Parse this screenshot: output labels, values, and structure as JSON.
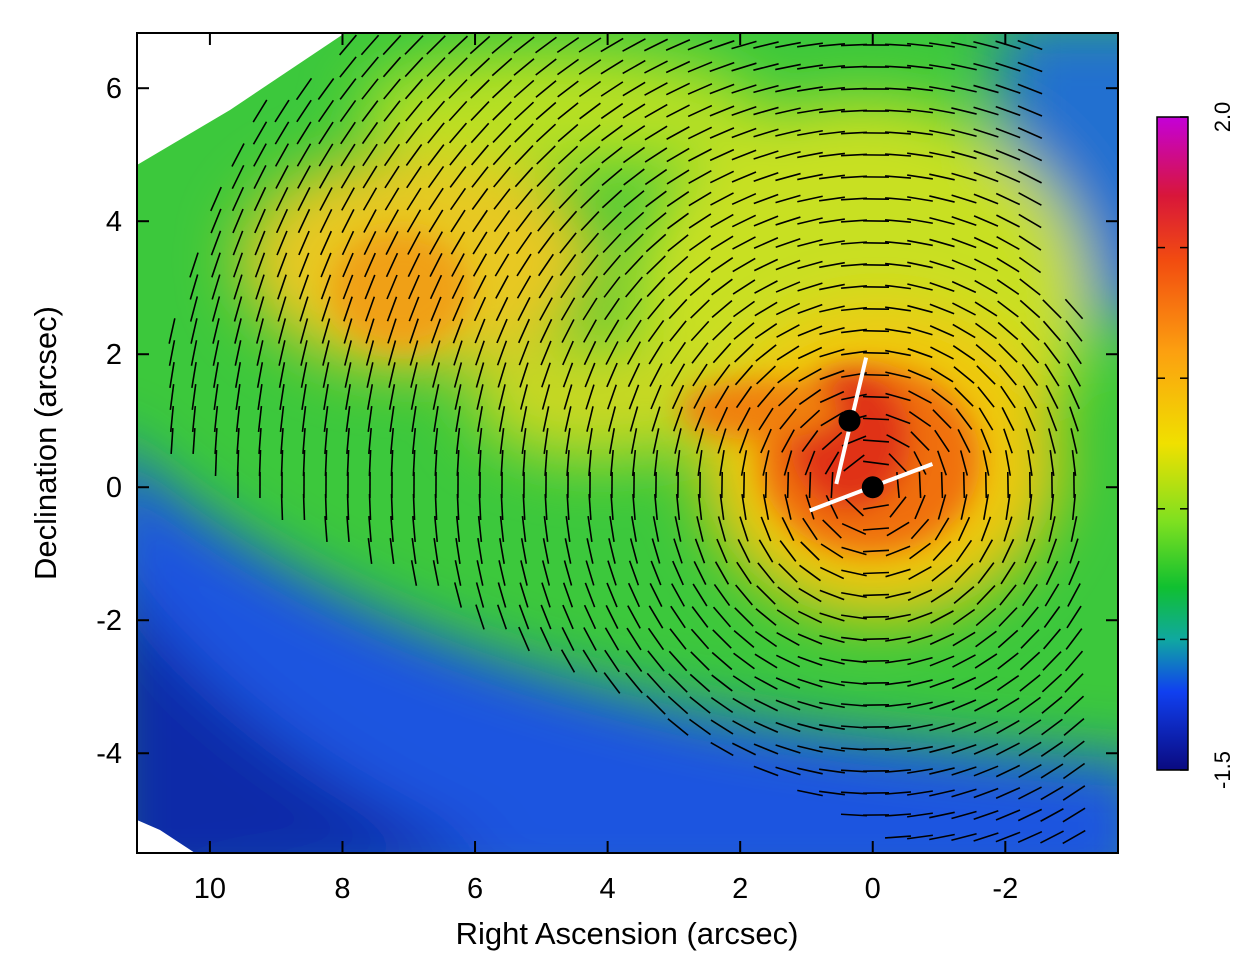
{
  "chart_data": {
    "type": "heatmap",
    "xlabel": "Right Ascension (arcsec)",
    "ylabel": "Declination (arcsec)",
    "xlim": [
      11.1,
      -3.7
    ],
    "ylim": [
      -5.5,
      6.83
    ],
    "xticks": [
      10,
      8,
      6,
      4,
      2,
      0,
      -2
    ],
    "yticks": [
      -4,
      -2,
      0,
      2,
      4,
      6
    ],
    "clim": [
      -1.5,
      2.0
    ],
    "cticks": [
      {
        "value": 2.0,
        "label": "2.0"
      },
      {
        "value": -1.5,
        "label": "-1.5"
      }
    ],
    "cminor_ticks": [
      1.3,
      0.6,
      -0.1,
      -0.8
    ],
    "markers": [
      {
        "x": 0.35,
        "y": 1.0
      },
      {
        "x": 0,
        "y": 0
      }
    ],
    "lines": [
      {
        "x": [
          0.55,
          0.1
        ],
        "y": [
          0.05,
          1.95
        ]
      },
      {
        "x": [
          0.95,
          -0.9
        ],
        "y": [
          -0.35,
          0.35
        ]
      }
    ]
  }
}
